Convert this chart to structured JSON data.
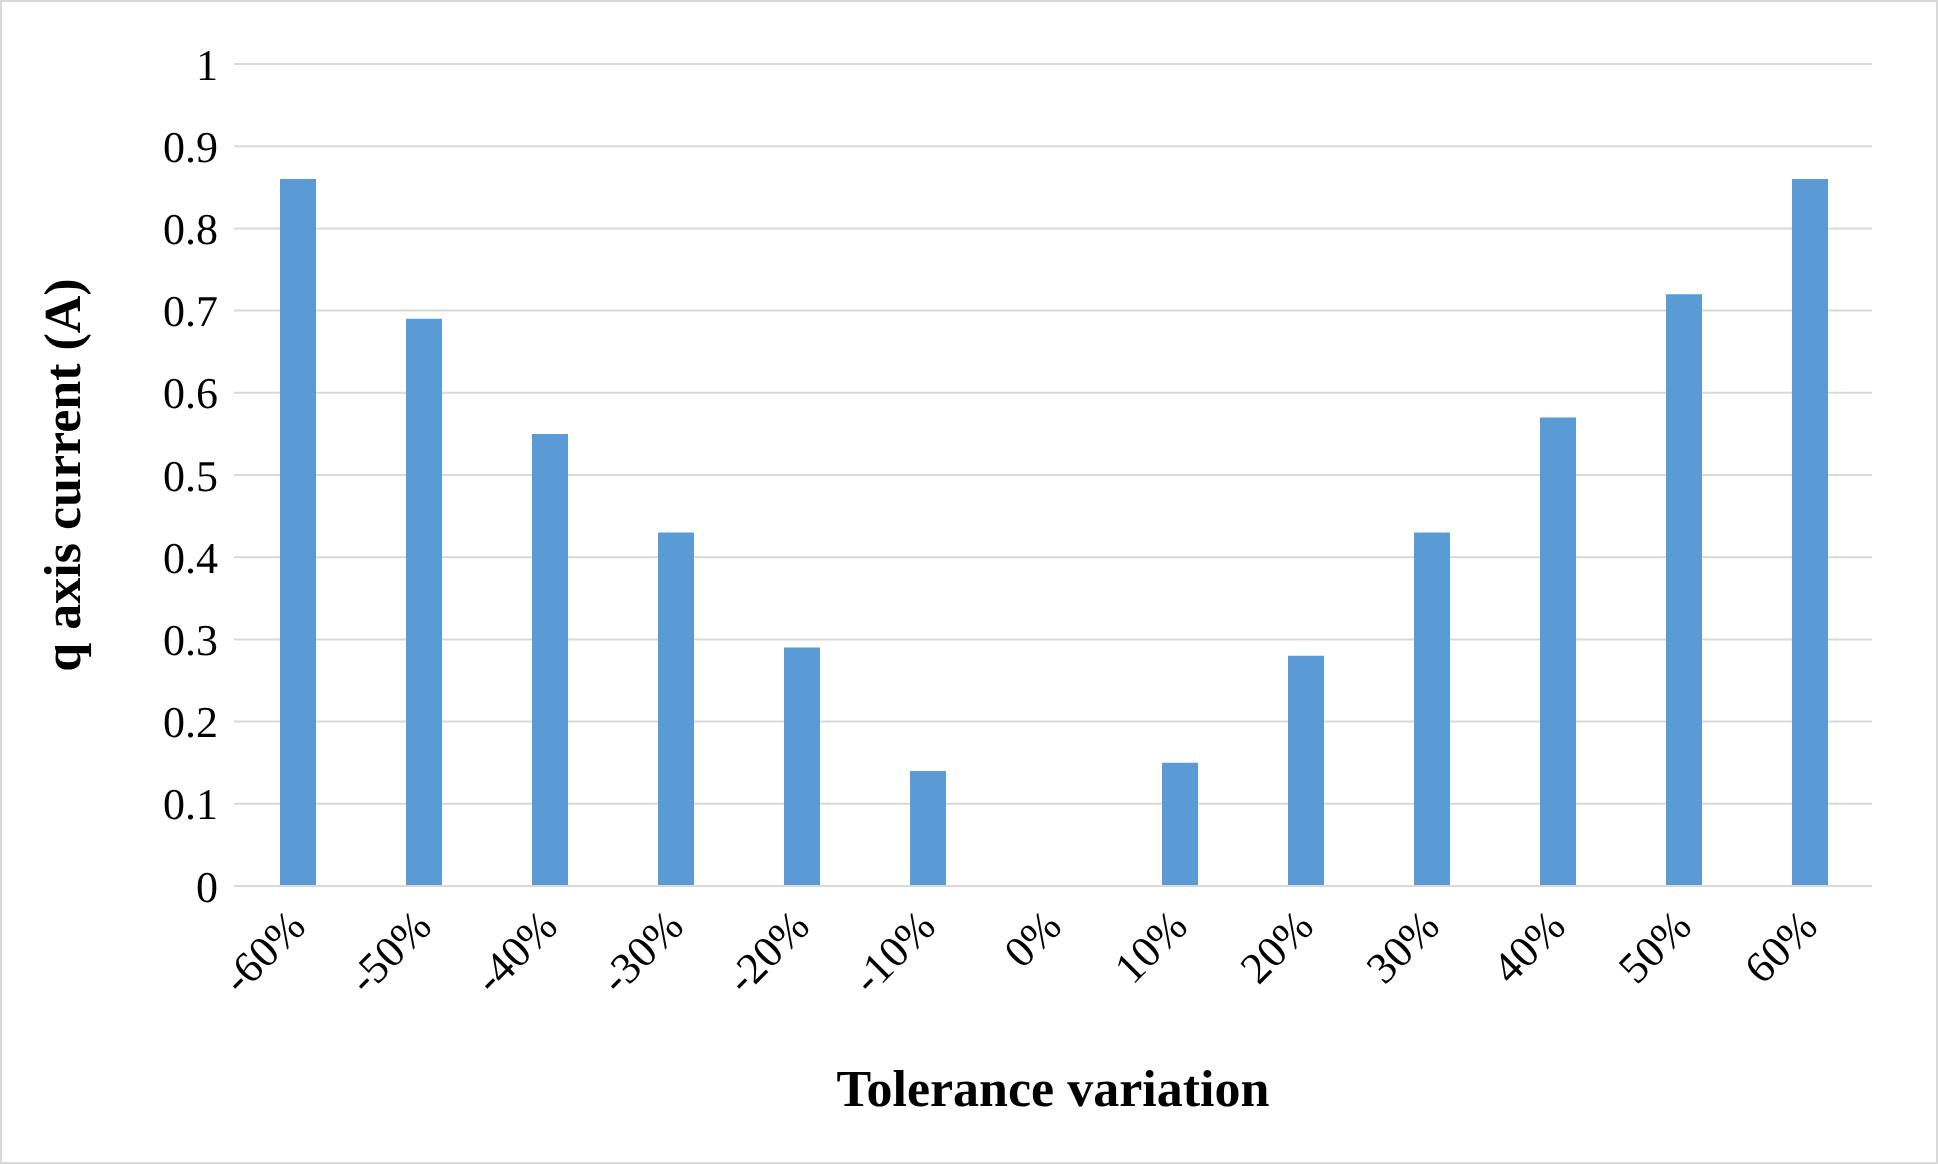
{
  "chart_data": {
    "type": "bar",
    "xlabel": "Tolerance variation",
    "ylabel": "q axis current (A)",
    "categories": [
      "-60%",
      "-50%",
      "-40%",
      "-30%",
      "-20%",
      "-10%",
      "0%",
      "10%",
      "20%",
      "30%",
      "40%",
      "50%",
      "60%"
    ],
    "values": [
      0.86,
      0.69,
      0.55,
      0.43,
      0.29,
      0.14,
      0,
      0.15,
      0.28,
      0.43,
      0.57,
      0.72,
      0.86
    ],
    "color": "#5b9bd5",
    "ylim": [
      0,
      1
    ],
    "yticks": [
      0,
      0.1,
      0.2,
      0.3,
      0.4,
      0.5,
      0.6,
      0.7,
      0.8,
      0.9,
      1
    ],
    "grid": "y"
  }
}
